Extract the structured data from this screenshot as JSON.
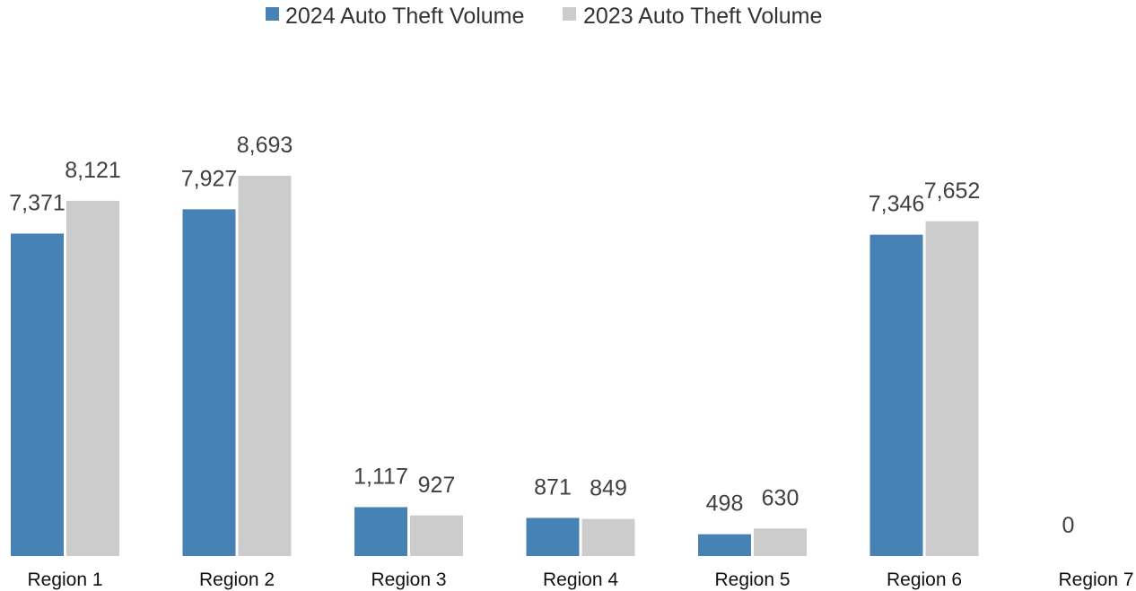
{
  "chart_data": {
    "type": "bar",
    "title": "",
    "xlabel": "",
    "ylabel": "",
    "categories": [
      "Region 1",
      "Region 2",
      "Region 3",
      "Region 4",
      "Region 5",
      "Region 6",
      "Region 7"
    ],
    "series": [
      {
        "name": "2024 Auto Theft Volume",
        "color": "#4682b4",
        "values": [
          7371,
          7927,
          1117,
          871,
          498,
          7346,
          0
        ],
        "labels": [
          "7,371",
          "7,927",
          "1,117",
          "871",
          "498",
          "7,346",
          "0"
        ]
      },
      {
        "name": "2023 Auto Theft Volume",
        "color": "#cccccc",
        "values": [
          8121,
          8693,
          927,
          849,
          630,
          7652,
          null
        ],
        "labels": [
          "8,121",
          "8,693",
          "927",
          "849",
          "630",
          "7,652",
          ""
        ]
      }
    ],
    "ylim": [
      0,
      10000
    ],
    "grid": false,
    "legend_position": "top-center"
  }
}
